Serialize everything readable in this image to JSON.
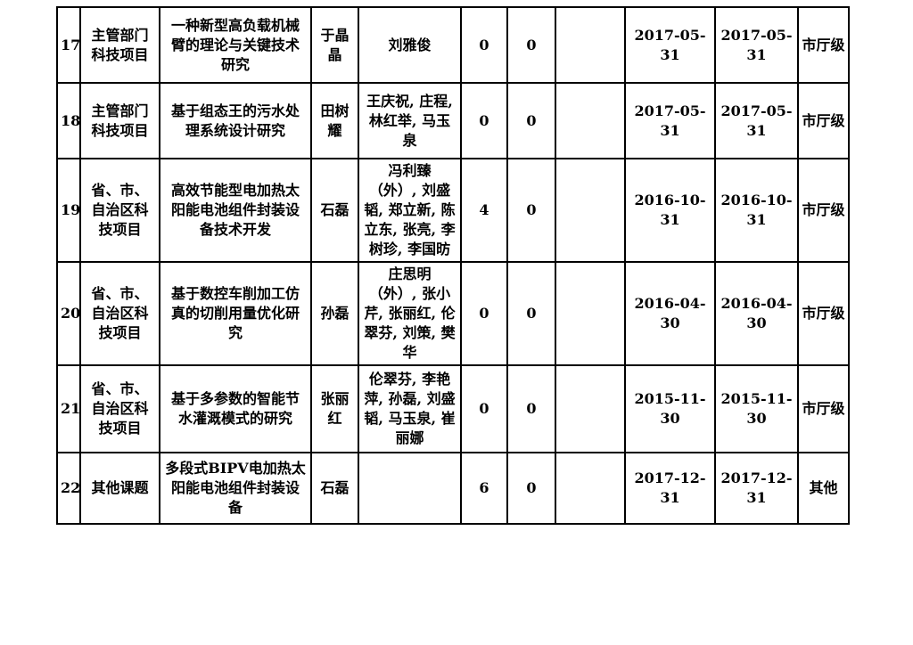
{
  "colors": {
    "border": "#000000",
    "text": "#000000",
    "background": "#ffffff"
  },
  "table": {
    "rows": [
      {
        "num": "17",
        "type": "主管部门\n科技项目",
        "title": "一种新型高负载机械\n臂的理论与关键技术\n研究",
        "pi": "于晶晶",
        "participants": "刘雅俊",
        "n1": "0",
        "n2": "0",
        "blank": "",
        "date1": "2017-05-31",
        "date2": "2017-05-31",
        "level": "市厅级"
      },
      {
        "num": "18",
        "type": "主管部门\n科技项目",
        "title": "基于组态王的污水处\n理系统设计研究",
        "pi": "田树耀",
        "participants": "王庆祝, 庄程,\n林红举, 马玉\n泉",
        "n1": "0",
        "n2": "0",
        "blank": "",
        "date1": "2017-05-31",
        "date2": "2017-05-31",
        "level": "市厅级"
      },
      {
        "num": "19",
        "type": "省、市、\n自治区科\n技项目",
        "title": "高效节能型电加热太\n阳能电池组件封装设\n备技术开发",
        "pi": "石磊",
        "participants": "冯利臻\n（外）, 刘盛\n韬, 郑立新, 陈\n立东, 张亮, 李\n树珍, 李国昉",
        "n1": "4",
        "n2": "0",
        "blank": "",
        "date1": "2016-10-31",
        "date2": "2016-10-31",
        "level": "市厅级"
      },
      {
        "num": "20",
        "type": "省、市、\n自治区科\n技项目",
        "title": "基于数控车削加工仿\n真的切削用量优化研\n究",
        "pi": "孙磊",
        "participants": "庄思明\n（外）, 张小\n芹, 张丽红, 伦\n翠芬, 刘策, 樊\n华",
        "n1": "0",
        "n2": "0",
        "blank": "",
        "date1": "2016-04-30",
        "date2": "2016-04-30",
        "level": "市厅级"
      },
      {
        "num": "21",
        "type": "省、市、\n自治区科\n技项目",
        "title": "基于多参数的智能节\n水灌溉模式的研究",
        "pi": "张丽红",
        "participants": "伦翠芬, 李艳\n萍, 孙磊, 刘盛\n韬, 马玉泉, 崔\n丽娜",
        "n1": "0",
        "n2": "0",
        "blank": "",
        "date1": "2015-11-30",
        "date2": "2015-11-30",
        "level": "市厅级"
      },
      {
        "num": "22",
        "type": "其他课题",
        "title": "多段式BIPV电加热太\n阳能电池组件封装设\n备",
        "pi": "石磊",
        "participants": "",
        "n1": "6",
        "n2": "0",
        "blank": "",
        "date1": "2017-12-31",
        "date2": "2017-12-31",
        "level": "其他"
      }
    ]
  }
}
